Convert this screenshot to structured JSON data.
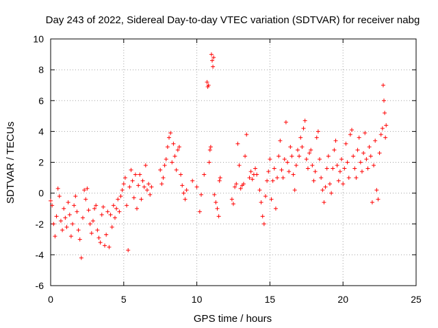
{
  "chart_data": {
    "type": "scatter",
    "title": "Day 243 of 2022, Sidereal Day-to-day VTEC variation (SDTVAR) for receiver nabg",
    "xlabel": "GPS time / hours",
    "ylabel": "SDTVAR / TECUs",
    "xlim": [
      0,
      25
    ],
    "ylim": [
      -6,
      10
    ],
    "xticks": [
      0,
      5,
      10,
      15,
      20,
      25
    ],
    "yticks": [
      -6,
      -4,
      -2,
      0,
      2,
      4,
      6,
      8,
      10
    ],
    "xtick_labels": [
      "0",
      "5",
      "10",
      "15",
      "20",
      "25"
    ],
    "ytick_labels": [
      "-6",
      "-4",
      "-2",
      "0",
      "2",
      "4",
      "6",
      "8",
      "10"
    ],
    "grid": true,
    "marker": "+",
    "series_color": "#ff0000",
    "series": [
      {
        "name": "SDTVAR nabg",
        "points": [
          [
            0.0,
            -0.5
          ],
          [
            0.1,
            -0.8
          ],
          [
            0.2,
            -2.0
          ],
          [
            0.3,
            -2.8
          ],
          [
            0.4,
            -1.5
          ],
          [
            0.5,
            0.3
          ],
          [
            0.6,
            -0.2
          ],
          [
            0.7,
            -1.8
          ],
          [
            0.8,
            -2.4
          ],
          [
            0.9,
            -1.0
          ],
          [
            1.0,
            -1.6
          ],
          [
            1.1,
            -2.2
          ],
          [
            1.2,
            -0.6
          ],
          [
            1.3,
            -1.4
          ],
          [
            1.4,
            -2.8
          ],
          [
            1.5,
            -2.0
          ],
          [
            1.6,
            -0.8
          ],
          [
            1.7,
            -0.2
          ],
          [
            1.8,
            -1.2
          ],
          [
            1.9,
            -2.4
          ],
          [
            2.0,
            -3.0
          ],
          [
            2.1,
            -4.2
          ],
          [
            2.2,
            -1.6
          ],
          [
            2.3,
            0.2
          ],
          [
            2.4,
            -0.4
          ],
          [
            2.5,
            0.3
          ],
          [
            2.6,
            -1.1
          ],
          [
            2.7,
            -2.0
          ],
          [
            2.8,
            -2.6
          ],
          [
            2.9,
            -1.8
          ],
          [
            3.0,
            -1.0
          ],
          [
            3.1,
            -0.8
          ],
          [
            3.2,
            -2.4
          ],
          [
            3.3,
            -2.9
          ],
          [
            3.4,
            -3.2
          ],
          [
            3.5,
            -1.4
          ],
          [
            3.6,
            -0.9
          ],
          [
            3.7,
            -3.4
          ],
          [
            3.8,
            -2.7
          ],
          [
            3.9,
            -1.2
          ],
          [
            4.0,
            -3.5
          ],
          [
            4.1,
            -1.4
          ],
          [
            4.2,
            -2.2
          ],
          [
            4.3,
            -0.8
          ],
          [
            4.4,
            -1.6
          ],
          [
            4.5,
            -1.0
          ],
          [
            4.6,
            -0.4
          ],
          [
            4.7,
            -1.2
          ],
          [
            4.8,
            -0.2
          ],
          [
            4.9,
            0.2
          ],
          [
            5.0,
            0.6
          ],
          [
            5.1,
            1.0
          ],
          [
            5.2,
            -0.8
          ],
          [
            5.3,
            -3.7
          ],
          [
            5.4,
            0.4
          ],
          [
            5.5,
            1.5
          ],
          [
            5.6,
            0.8
          ],
          [
            5.7,
            -0.3
          ],
          [
            5.8,
            1.2
          ],
          [
            5.9,
            -1.0
          ],
          [
            6.0,
            0.5
          ],
          [
            6.1,
            1.2
          ],
          [
            6.2,
            -0.4
          ],
          [
            6.3,
            0.8
          ],
          [
            6.4,
            0.4
          ],
          [
            6.5,
            1.8
          ],
          [
            6.6,
            0.2
          ],
          [
            6.7,
            0.6
          ],
          [
            6.8,
            -0.1
          ],
          [
            6.9,
            0.4
          ],
          [
            7.5,
            1.5
          ],
          [
            7.6,
            0.6
          ],
          [
            7.7,
            1.0
          ],
          [
            7.8,
            1.8
          ],
          [
            7.9,
            2.2
          ],
          [
            8.0,
            3.0
          ],
          [
            8.1,
            3.6
          ],
          [
            8.2,
            3.9
          ],
          [
            8.3,
            2.0
          ],
          [
            8.4,
            3.2
          ],
          [
            8.5,
            2.4
          ],
          [
            8.6,
            1.5
          ],
          [
            8.7,
            2.8
          ],
          [
            8.8,
            3.0
          ],
          [
            8.9,
            1.2
          ],
          [
            9.0,
            0.5
          ],
          [
            9.1,
            0.0
          ],
          [
            9.2,
            -0.4
          ],
          [
            9.3,
            0.2
          ],
          [
            9.7,
            0.8
          ],
          [
            10.0,
            0.4
          ],
          [
            10.2,
            -1.2
          ],
          [
            10.3,
            -0.1
          ],
          [
            10.5,
            1.2
          ],
          [
            10.7,
            7.2
          ],
          [
            10.75,
            6.9
          ],
          [
            10.8,
            7.0
          ],
          [
            10.85,
            2.0
          ],
          [
            10.9,
            2.8
          ],
          [
            10.95,
            3.0
          ],
          [
            11.0,
            9.0
          ],
          [
            11.05,
            8.6
          ],
          [
            11.1,
            8.2
          ],
          [
            11.15,
            8.8
          ],
          [
            11.2,
            -0.1
          ],
          [
            11.3,
            -0.6
          ],
          [
            11.4,
            -1.0
          ],
          [
            11.5,
            -1.5
          ],
          [
            11.55,
            0.8
          ],
          [
            11.6,
            1.0
          ],
          [
            12.4,
            -0.4
          ],
          [
            12.5,
            -0.7
          ],
          [
            12.6,
            0.4
          ],
          [
            12.7,
            0.6
          ],
          [
            12.8,
            3.2
          ],
          [
            12.9,
            1.8
          ],
          [
            13.0,
            0.3
          ],
          [
            13.1,
            0.5
          ],
          [
            13.2,
            0.6
          ],
          [
            13.3,
            2.4
          ],
          [
            13.4,
            3.8
          ],
          [
            13.6,
            1.0
          ],
          [
            13.7,
            1.4
          ],
          [
            13.8,
            0.9
          ],
          [
            13.9,
            1.2
          ],
          [
            14.0,
            1.6
          ],
          [
            14.1,
            1.2
          ],
          [
            14.3,
            0.2
          ],
          [
            14.4,
            -0.6
          ],
          [
            14.5,
            -1.5
          ],
          [
            14.6,
            -2.0
          ],
          [
            14.7,
            -0.2
          ],
          [
            14.8,
            0.8
          ],
          [
            14.9,
            1.4
          ],
          [
            15.0,
            2.2
          ],
          [
            15.1,
            -0.4
          ],
          [
            15.2,
            0.8
          ],
          [
            15.3,
            1.6
          ],
          [
            15.4,
            -1.0
          ],
          [
            15.5,
            1.0
          ],
          [
            15.6,
            2.4
          ],
          [
            15.7,
            3.4
          ],
          [
            15.8,
            1.5
          ],
          [
            15.9,
            1.0
          ],
          [
            16.0,
            2.2
          ],
          [
            16.1,
            4.6
          ],
          [
            16.2,
            2.0
          ],
          [
            16.3,
            1.4
          ],
          [
            16.4,
            3.0
          ],
          [
            16.5,
            2.4
          ],
          [
            16.6,
            1.2
          ],
          [
            16.7,
            0.2
          ],
          [
            16.8,
            1.8
          ],
          [
            16.9,
            2.8
          ],
          [
            17.0,
            2.4
          ],
          [
            17.1,
            3.6
          ],
          [
            17.2,
            3.0
          ],
          [
            17.3,
            4.2
          ],
          [
            17.4,
            4.7
          ],
          [
            17.5,
            2.2
          ],
          [
            17.6,
            1.6
          ],
          [
            17.7,
            2.6
          ],
          [
            17.8,
            2.8
          ],
          [
            17.9,
            1.8
          ],
          [
            18.0,
            0.8
          ],
          [
            18.1,
            1.4
          ],
          [
            18.2,
            3.6
          ],
          [
            18.3,
            4.0
          ],
          [
            18.4,
            2.2
          ],
          [
            18.5,
            1.0
          ],
          [
            18.6,
            0.2
          ],
          [
            18.7,
            -0.6
          ],
          [
            18.8,
            0.4
          ],
          [
            18.9,
            1.6
          ],
          [
            19.0,
            2.4
          ],
          [
            19.1,
            0.6
          ],
          [
            19.2,
            0.0
          ],
          [
            19.3,
            1.6
          ],
          [
            19.4,
            2.8
          ],
          [
            19.5,
            3.4
          ],
          [
            19.6,
            1.8
          ],
          [
            19.7,
            0.8
          ],
          [
            19.8,
            1.4
          ],
          [
            19.9,
            2.2
          ],
          [
            20.0,
            0.6
          ],
          [
            20.1,
            1.6
          ],
          [
            20.2,
            3.2
          ],
          [
            20.3,
            2.0
          ],
          [
            20.4,
            1.0
          ],
          [
            20.5,
            3.8
          ],
          [
            20.6,
            4.1
          ],
          [
            20.7,
            2.4
          ],
          [
            20.8,
            1.6
          ],
          [
            20.9,
            1.0
          ],
          [
            21.0,
            2.8
          ],
          [
            21.1,
            3.6
          ],
          [
            21.2,
            2.0
          ],
          [
            21.3,
            1.4
          ],
          [
            21.4,
            2.6
          ],
          [
            21.5,
            3.9
          ],
          [
            21.6,
            2.2
          ],
          [
            21.7,
            1.6
          ],
          [
            21.8,
            3.0
          ],
          [
            21.9,
            2.4
          ],
          [
            22.0,
            -0.6
          ],
          [
            22.1,
            1.8
          ],
          [
            22.2,
            3.4
          ],
          [
            22.3,
            0.2
          ],
          [
            22.4,
            -0.4
          ],
          [
            22.5,
            2.6
          ],
          [
            22.6,
            3.8
          ],
          [
            22.7,
            4.2
          ],
          [
            22.75,
            7.0
          ],
          [
            22.8,
            6.0
          ],
          [
            22.85,
            5.2
          ],
          [
            22.9,
            3.6
          ],
          [
            22.95,
            4.4
          ]
        ]
      }
    ]
  }
}
